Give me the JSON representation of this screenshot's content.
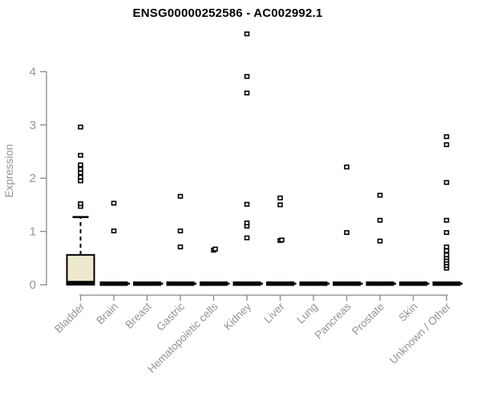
{
  "chart_data": {
    "type": "boxplot",
    "title": "ENSG00000252586 - AC002992.1",
    "xlabel": "",
    "ylabel": "Expression",
    "ylim": [
      0,
      4.8
    ],
    "yticks": [
      0,
      1,
      2,
      3,
      4
    ],
    "grid": false,
    "legend": "none",
    "categories": [
      "Bladder",
      "Brain",
      "Breast",
      "Gastric",
      "Hematopoietic cells",
      "Kidney",
      "Liver",
      "Lung",
      "Pancreas",
      "Prostate",
      "Skin",
      "Unknown / Other"
    ],
    "boxes": [
      {
        "category": "Bladder",
        "q1": 0,
        "median": 0.03,
        "q3": 0.56,
        "whisker_low": 0,
        "whisker_high": 1.27,
        "outliers": [
          1.47,
          1.52,
          1.95,
          2.02,
          2.1,
          2.17,
          2.25,
          2.43,
          2.96
        ]
      },
      {
        "category": "Brain",
        "q1": 0,
        "median": 0.02,
        "q3": 0.02,
        "whisker_low": 0,
        "whisker_high": 0.02,
        "outliers": [
          1.01,
          1.53
        ]
      },
      {
        "category": "Breast",
        "q1": 0,
        "median": 0.02,
        "q3": 0.02,
        "whisker_low": 0,
        "whisker_high": 0.02,
        "outliers": []
      },
      {
        "category": "Gastric",
        "q1": 0,
        "median": 0.02,
        "q3": 0.02,
        "whisker_low": 0,
        "whisker_high": 0.02,
        "outliers": [
          0.71,
          1.01,
          1.66
        ]
      },
      {
        "category": "Hematopoietic cells",
        "q1": 0,
        "median": 0.02,
        "q3": 0.02,
        "whisker_low": 0,
        "whisker_high": 0.02,
        "outliers": [
          0.65,
          0.67
        ]
      },
      {
        "category": "Kidney",
        "q1": 0,
        "median": 0.02,
        "q3": 0.02,
        "whisker_low": 0,
        "whisker_high": 0.02,
        "outliers": [
          0.88,
          1.1,
          1.16,
          1.51,
          3.6,
          3.91,
          4.71
        ]
      },
      {
        "category": "Liver",
        "q1": 0,
        "median": 0.02,
        "q3": 0.02,
        "whisker_low": 0,
        "whisker_high": 0.02,
        "outliers": [
          0.83,
          0.84,
          1.5,
          1.63
        ]
      },
      {
        "category": "Lung",
        "q1": 0,
        "median": 0.02,
        "q3": 0.02,
        "whisker_low": 0,
        "whisker_high": 0.02,
        "outliers": []
      },
      {
        "category": "Pancreas",
        "q1": 0,
        "median": 0.02,
        "q3": 0.02,
        "whisker_low": 0,
        "whisker_high": 0.02,
        "outliers": [
          0.98,
          2.21
        ]
      },
      {
        "category": "Prostate",
        "q1": 0,
        "median": 0.02,
        "q3": 0.02,
        "whisker_low": 0,
        "whisker_high": 0.02,
        "outliers": [
          0.82,
          1.21,
          1.68
        ]
      },
      {
        "category": "Skin",
        "q1": 0,
        "median": 0.02,
        "q3": 0.02,
        "whisker_low": 0,
        "whisker_high": 0.02,
        "outliers": []
      },
      {
        "category": "Unknown / Other",
        "q1": 0,
        "median": 0.02,
        "q3": 0.02,
        "whisker_low": 0,
        "whisker_high": 0.02,
        "outliers": [
          0.31,
          0.36,
          0.41,
          0.46,
          0.51,
          0.56,
          0.64,
          0.71,
          0.98,
          1.21,
          1.92,
          2.63,
          2.78
        ]
      }
    ],
    "point_style": "open-square",
    "colors": {
      "box_fill": "#EEE8CD",
      "box_stroke": "#000000",
      "point_stroke": "#000000",
      "point_fill": "#ffffff",
      "axis": "#888888",
      "gray_text": "#949494",
      "title_text": "#000000",
      "background": "#ffffff"
    }
  }
}
